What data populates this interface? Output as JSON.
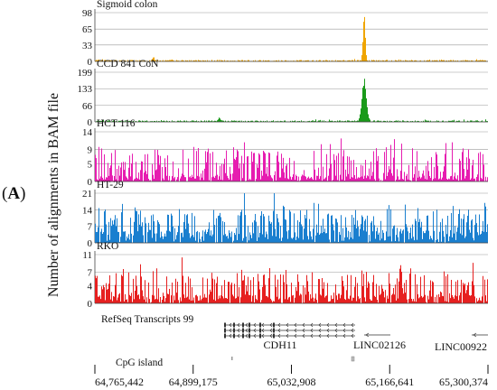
{
  "panel_label": "A",
  "y_axis_label": "Number of alignments in BAM file",
  "chart_data": {
    "type": "area",
    "title": "",
    "xlabel": "",
    "ylabel": "Number of alignments in BAM file",
    "x_ticks": [
      "64,765,442",
      "64,899,175",
      "65,032,908",
      "65,166,641",
      "65,300,374"
    ],
    "x_tick_values": [
      64765442,
      64899175,
      65032908,
      65166641,
      65300374
    ],
    "x_range": [
      64765442,
      65300374
    ],
    "grid": true,
    "tracks": [
      {
        "name": "Sigmoid colon",
        "color": "#f0a500",
        "ylim": [
          0,
          98
        ],
        "yticks": [
          0,
          33,
          65,
          98
        ],
        "pattern": "peak",
        "baseline": 0.03,
        "noise": 0.02,
        "peak_x": 65132000,
        "peak_value": 98,
        "peak_width": 1500,
        "minor_peak_x": 64845000,
        "minor_peak_value": 7
      },
      {
        "name": "CCD 841 CoN",
        "color": "#1a9a1a",
        "ylim": [
          0,
          199
        ],
        "yticks": [
          0,
          66,
          133,
          199
        ],
        "pattern": "peak",
        "baseline": 0.03,
        "noise": 0.04,
        "peak_x": 65132000,
        "peak_value": 170,
        "peak_width": 3000,
        "minor_peak_x": 64935000,
        "minor_peak_value": 15
      },
      {
        "name": "HCT 116",
        "color": "#e61db0",
        "ylim": [
          0,
          14
        ],
        "yticks": [
          0,
          5,
          9,
          14
        ],
        "pattern": "dense",
        "baseline": 0.12,
        "noise": 0.6
      },
      {
        "name": "HT-29",
        "color": "#1a7fcf",
        "ylim": [
          0,
          21
        ],
        "yticks": [
          0,
          7,
          14,
          21
        ],
        "pattern": "dense",
        "baseline": 0.25,
        "noise": 0.55
      },
      {
        "name": "RKO",
        "color": "#e62020",
        "ylim": [
          0,
          11
        ],
        "yticks": [
          0,
          4,
          7,
          11
        ],
        "pattern": "dense",
        "baseline": 0.2,
        "noise": 0.55
      }
    ],
    "annotations": {
      "refseq_label": "RefSeq Transcripts 99",
      "genes": [
        {
          "name": "CDH11",
          "strand": "-"
        },
        {
          "name": "LINC02126",
          "strand": "-"
        },
        {
          "name": "LINC00922",
          "strand": "-"
        }
      ],
      "cpg_label": "CpG island"
    }
  }
}
